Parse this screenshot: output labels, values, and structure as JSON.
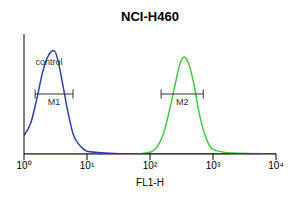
{
  "chart_data": {
    "type": "line",
    "title": "NCI-H460",
    "x_label": "FL1-H",
    "log": "x",
    "tick_labels": "x",
    "xlim": [
      1,
      10000
    ],
    "xticks": [
      {
        "value": 1,
        "label": "10⁰"
      },
      {
        "value": 10,
        "label": "10¹"
      },
      {
        "value": 100,
        "label": "10²"
      },
      {
        "value": 1000,
        "label": "10³"
      },
      {
        "value": 10000,
        "label": "10⁴"
      }
    ],
    "ylim": [
      0,
      130
    ],
    "x": [
      1,
      1.3,
      1.6,
      2,
      2.5,
      3,
      3.5,
      4,
      5,
      6,
      8,
      10,
      20,
      50,
      100,
      130,
      160,
      200,
      250,
      300,
      350,
      400,
      500,
      600,
      800,
      1000,
      2000,
      10000
    ],
    "series": [
      {
        "color": "#2a3fb0",
        "values": [
          20,
          35,
          60,
          90,
          108,
          112,
          100,
          80,
          45,
          22,
          8,
          3,
          1,
          0,
          0,
          0,
          0,
          0,
          0,
          0,
          0,
          0,
          0,
          0,
          0,
          0,
          0,
          0
        ]
      },
      {
        "color": "#3ccc3c",
        "values": [
          0,
          0,
          0,
          0,
          0,
          0,
          0,
          0,
          0,
          0,
          0,
          0,
          0,
          0,
          2,
          8,
          20,
          45,
          75,
          98,
          105,
          100,
          75,
          45,
          15,
          5,
          1,
          0
        ]
      }
    ],
    "annotations": [
      {
        "text": "control",
        "x": 2.5,
        "y": 100
      }
    ],
    "gates": [
      {
        "label": "M1",
        "x": [
          1.5,
          6
        ],
        "y": 65
      },
      {
        "label": "M2",
        "x": [
          150,
          700
        ],
        "y": 65
      }
    ]
  }
}
